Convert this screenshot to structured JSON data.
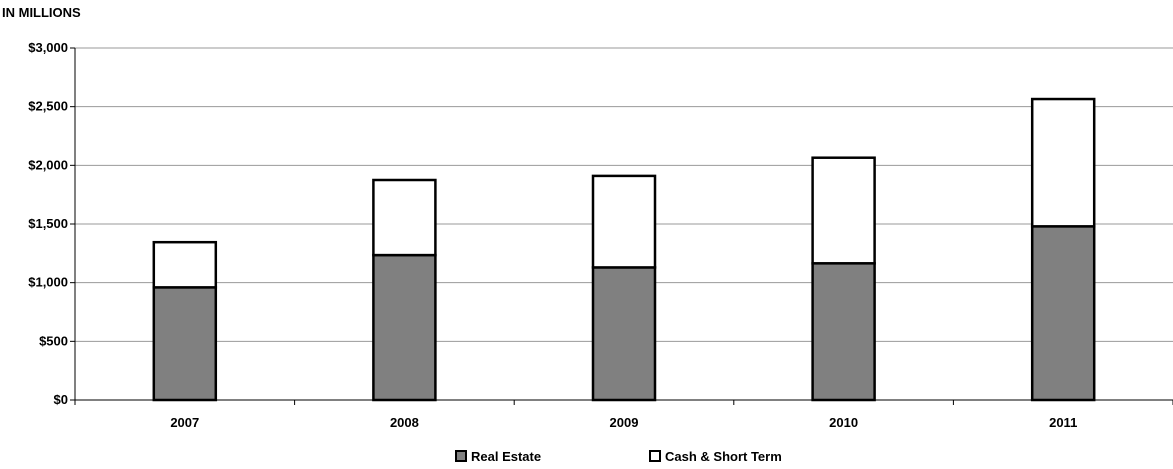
{
  "chart_data": {
    "type": "bar",
    "stacked": true,
    "unit_label": "IN MILLIONS",
    "categories": [
      "2007",
      "2008",
      "2009",
      "2010",
      "2011"
    ],
    "series": [
      {
        "name": "Real Estate",
        "values": [
          960,
          1235,
          1130,
          1165,
          1480
        ],
        "color": "#808080"
      },
      {
        "name": "Cash & Short Term",
        "values": [
          385,
          640,
          780,
          900,
          1085
        ],
        "color": "#ffffff"
      }
    ],
    "ylim": [
      0,
      3000
    ],
    "y_ticks": [
      0,
      500,
      1000,
      1500,
      2000,
      2500,
      3000
    ],
    "y_tick_labels": [
      "$0",
      "$500",
      "$1,000",
      "$1,500",
      "$2,000",
      "$2,500",
      "$3,000"
    ],
    "grid": true,
    "legend_position": "bottom"
  }
}
